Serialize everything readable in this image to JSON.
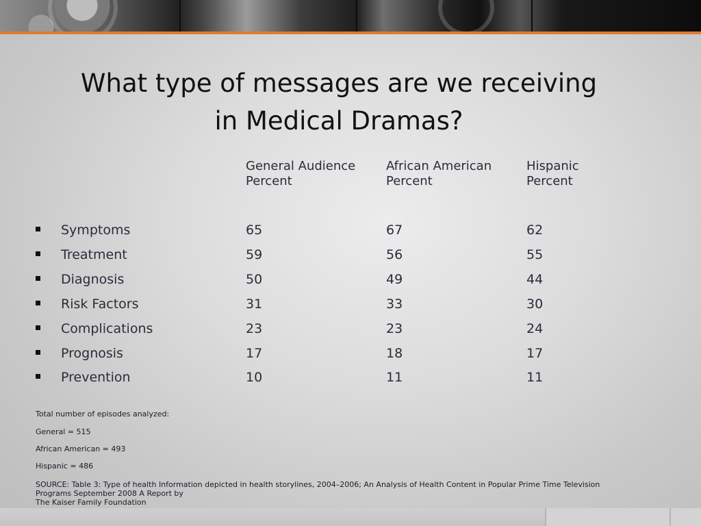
{
  "slide": {
    "title_line1": "What type of messages are we receiving",
    "title_line2": "in Medical Dramas?",
    "columns": [
      {
        "line1": "General Audience",
        "line2": "Percent"
      },
      {
        "line1": "African American",
        "line2": "Percent"
      },
      {
        "line1": "Hispanic",
        "line2": "Percent"
      }
    ],
    "rows": [
      {
        "label": "Symptoms",
        "values": [
          "65",
          "67",
          "62"
        ]
      },
      {
        "label": "Treatment",
        "values": [
          "59",
          "56",
          "55"
        ]
      },
      {
        "label": "Diagnosis",
        "values": [
          "50",
          "49",
          "44"
        ]
      },
      {
        "label": "Risk Factors",
        "values": [
          "31",
          "33",
          "30"
        ]
      },
      {
        "label": "Complications",
        "values": [
          "23",
          "23",
          "24"
        ]
      },
      {
        "label": "Prognosis",
        "values": [
          "17",
          "18",
          "17"
        ]
      },
      {
        "label": "Prevention",
        "values": [
          "10",
          "11",
          "11"
        ]
      }
    ],
    "notes": [
      "Total number of episodes analyzed:",
      "General = 515",
      "African American = 493",
      "Hispanic = 486"
    ],
    "source_line1": "SOURCE: Table 3: Type of health Information depicted in health storylines, 2004–2006; An Analysis of Health Content in Popular Prime Time Television",
    "source_line2": "Programs September 2008 A Report by",
    "source_line3": "The Kaiser Family Foundation"
  },
  "theme": {
    "accent": "#e07b2e",
    "bullet_color": "#111111",
    "text_color": "#2b2b3a"
  }
}
